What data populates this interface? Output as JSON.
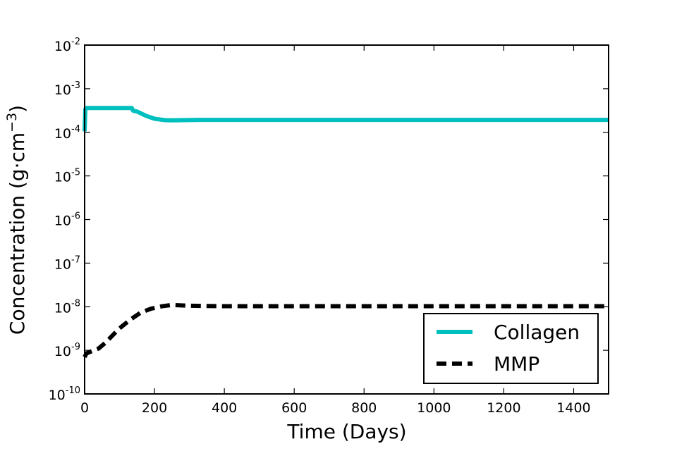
{
  "chart_data": {
    "type": "line",
    "title": "",
    "xlabel": "Time (Days)",
    "ylabel": {
      "prefix": "Concentration (g·cm",
      "exponent": "−3",
      "suffix": ")"
    },
    "xlim": [
      0,
      1500
    ],
    "ylim": [
      1e-10,
      0.01
    ],
    "yscale": "log",
    "grid": false,
    "legend_position": "lower-right",
    "x_ticks": [
      {
        "value": 0,
        "label": "0"
      },
      {
        "value": 200,
        "label": "200"
      },
      {
        "value": 400,
        "label": "400"
      },
      {
        "value": 600,
        "label": "600"
      },
      {
        "value": 800,
        "label": "800"
      },
      {
        "value": 1000,
        "label": "1000"
      },
      {
        "value": 1200,
        "label": "1200"
      },
      {
        "value": 1400,
        "label": "1400"
      }
    ],
    "y_ticks": [
      {
        "value": 1e-10,
        "base": "10",
        "exponent": "-10"
      },
      {
        "value": 1e-09,
        "base": "10",
        "exponent": "-9"
      },
      {
        "value": 1e-08,
        "base": "10",
        "exponent": "-8"
      },
      {
        "value": 1e-07,
        "base": "10",
        "exponent": "-7"
      },
      {
        "value": 1e-06,
        "base": "10",
        "exponent": "-6"
      },
      {
        "value": 1e-05,
        "base": "10",
        "exponent": "-5"
      },
      {
        "value": 0.0001,
        "base": "10",
        "exponent": "-4"
      },
      {
        "value": 0.001,
        "base": "10",
        "exponent": "-3"
      },
      {
        "value": 0.01,
        "base": "10",
        "exponent": "-2"
      }
    ],
    "series": [
      {
        "name": "Collagen",
        "color": "#00bfbf",
        "dash": "solid",
        "x": [
          0,
          2,
          5,
          30,
          100,
          135,
          138,
          140,
          150,
          175,
          200,
          230,
          250,
          280,
          330,
          500,
          1000,
          1500
        ],
        "y": [
          0.000105,
          0.00034,
          0.00036,
          0.00036,
          0.00036,
          0.00036,
          0.00032,
          0.00031,
          0.0003,
          0.00024,
          0.000205,
          0.00019,
          0.000188,
          0.00019,
          0.000193,
          0.000193,
          0.000193,
          0.000193
        ]
      },
      {
        "name": "MMP",
        "color": "#000000",
        "dash": "dashed",
        "x": [
          0,
          5,
          20,
          40,
          60,
          80,
          100,
          130,
          160,
          190,
          220,
          250,
          270,
          300,
          400,
          600,
          800,
          1000,
          1200,
          1500
        ],
        "y": [
          7e-10,
          8.5e-10,
          9.5e-10,
          1.1e-09,
          1.5e-09,
          2.2e-09,
          3.2e-09,
          5e-09,
          7.3e-09,
          9e-09,
          1.02e-08,
          1.1e-08,
          1.08e-08,
          1.05e-08,
          1.03e-08,
          1.03e-08,
          1.03e-08,
          1.03e-08,
          1.03e-08,
          1.03e-08
        ]
      }
    ]
  }
}
